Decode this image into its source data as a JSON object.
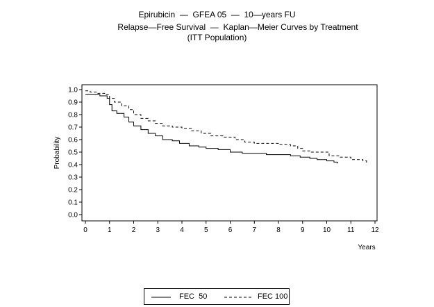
{
  "chart_data": {
    "type": "line",
    "title": [
      "Epirubicin  —  GFEA 05  —  10—years FU",
      "Relapse—Free Survival  —  Kaplan—Meier Curves by Treatment",
      "(ITT Population)"
    ],
    "xlabel": "Years",
    "ylabel": "Probability",
    "xlim": [
      0,
      12
    ],
    "ylim": [
      0,
      1
    ],
    "x_ticks": [
      "0",
      "1",
      "2",
      "3",
      "4",
      "5",
      "6",
      "7",
      "8",
      "9",
      "10",
      "11",
      "12"
    ],
    "y_ticks": [
      "0.0",
      "0.1",
      "0.2",
      "0.3",
      "0.4",
      "0.5",
      "0.6",
      "0.7",
      "0.8",
      "0.9",
      "1.0"
    ],
    "grid": false,
    "legend_position": "bottom",
    "series": [
      {
        "name": "FEC  50",
        "style": "solid",
        "color": "#000000",
        "points": [
          [
            0,
            0.96
          ],
          [
            0.4,
            0.96
          ],
          [
            0.6,
            0.95
          ],
          [
            0.9,
            0.93
          ],
          [
            1.0,
            0.88
          ],
          [
            1.1,
            0.83
          ],
          [
            1.3,
            0.81
          ],
          [
            1.6,
            0.78
          ],
          [
            1.8,
            0.74
          ],
          [
            2.0,
            0.71
          ],
          [
            2.3,
            0.68
          ],
          [
            2.6,
            0.65
          ],
          [
            2.9,
            0.63
          ],
          [
            3.2,
            0.6
          ],
          [
            3.6,
            0.59
          ],
          [
            3.9,
            0.57
          ],
          [
            4.3,
            0.55
          ],
          [
            4.7,
            0.54
          ],
          [
            5.0,
            0.53
          ],
          [
            5.5,
            0.52
          ],
          [
            6.0,
            0.5
          ],
          [
            6.5,
            0.49
          ],
          [
            7.0,
            0.49
          ],
          [
            7.5,
            0.48
          ],
          [
            8.0,
            0.48
          ],
          [
            8.5,
            0.47
          ],
          [
            8.9,
            0.46
          ],
          [
            9.3,
            0.45
          ],
          [
            9.6,
            0.44
          ],
          [
            10.0,
            0.43
          ],
          [
            10.3,
            0.42
          ],
          [
            10.45,
            0.41
          ]
        ]
      },
      {
        "name": "FEC 100",
        "style": "dashed",
        "color": "#000000",
        "points": [
          [
            0,
            0.99
          ],
          [
            0.2,
            0.98
          ],
          [
            0.5,
            0.97
          ],
          [
            0.8,
            0.96
          ],
          [
            1.0,
            0.93
          ],
          [
            1.2,
            0.9
          ],
          [
            1.5,
            0.87
          ],
          [
            1.8,
            0.84
          ],
          [
            2.0,
            0.8
          ],
          [
            2.3,
            0.77
          ],
          [
            2.6,
            0.75
          ],
          [
            2.9,
            0.73
          ],
          [
            3.2,
            0.71
          ],
          [
            3.6,
            0.7
          ],
          [
            4.0,
            0.69
          ],
          [
            4.4,
            0.67
          ],
          [
            4.8,
            0.65
          ],
          [
            5.2,
            0.63
          ],
          [
            5.7,
            0.62
          ],
          [
            6.2,
            0.6
          ],
          [
            6.6,
            0.58
          ],
          [
            7.0,
            0.57
          ],
          [
            7.5,
            0.57
          ],
          [
            8.0,
            0.56
          ],
          [
            8.5,
            0.55
          ],
          [
            8.8,
            0.53
          ],
          [
            9.0,
            0.51
          ],
          [
            9.3,
            0.5
          ],
          [
            9.8,
            0.5
          ],
          [
            10.1,
            0.47
          ],
          [
            10.5,
            0.46
          ],
          [
            11.0,
            0.44
          ],
          [
            11.5,
            0.43
          ],
          [
            11.65,
            0.4
          ]
        ]
      }
    ]
  }
}
